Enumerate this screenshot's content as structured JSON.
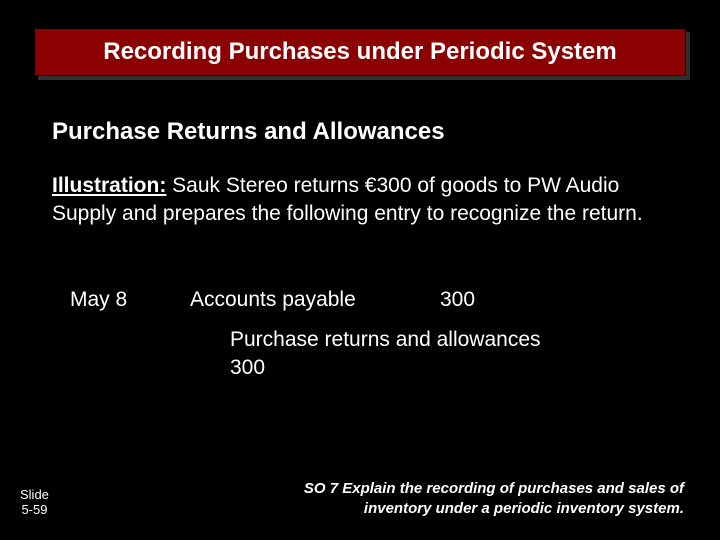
{
  "title": "Recording Purchases under Periodic System",
  "subtitle": "Purchase Returns and Allowances",
  "illustration": {
    "label": "Illustration:",
    "text": " Sauk Stereo returns €300 of goods to PW Audio Supply and prepares the following entry to recognize the return."
  },
  "journal": {
    "date": "May 8",
    "debit_account": "Accounts payable",
    "debit_amount": "300",
    "credit_account": "Purchase returns and allowances",
    "credit_amount": "300"
  },
  "footer": {
    "slide_label": "Slide",
    "slide_number": "5-59",
    "so_number": "SO 7",
    "so_text": "Explain the recording of purchases and sales of inventory under a periodic inventory system."
  },
  "colors": {
    "background": "#000000",
    "banner_bg": "#8b0000",
    "banner_shadow": "#303030",
    "text": "#ffffff"
  }
}
